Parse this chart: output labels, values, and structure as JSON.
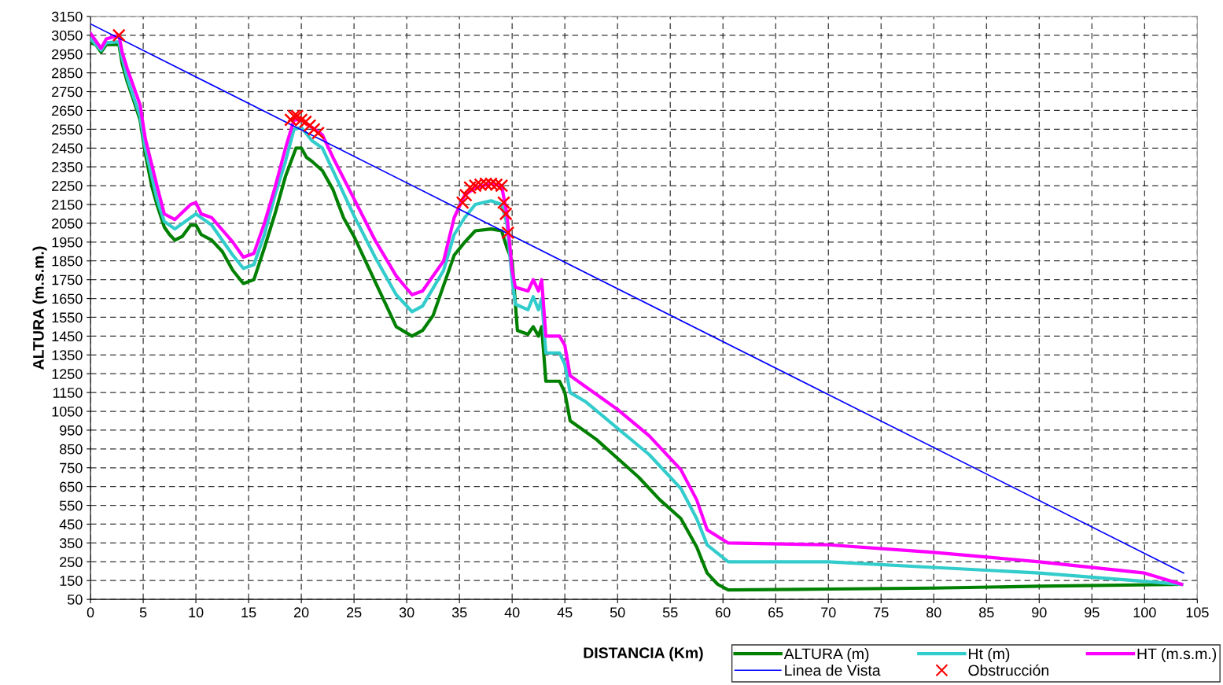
{
  "chart_data": {
    "type": "line",
    "xlabel": "DISTANCIA (Km)",
    "ylabel": "ALTURA (m.s.m.)",
    "xlim": [
      0,
      105
    ],
    "xticks": [
      0,
      5,
      10,
      15,
      20,
      25,
      30,
      35,
      40,
      45,
      50,
      55,
      60,
      65,
      70,
      75,
      80,
      85,
      90,
      95,
      100,
      105
    ],
    "ylim": [
      50,
      3150
    ],
    "yticks": [
      50,
      150,
      250,
      350,
      450,
      550,
      650,
      750,
      850,
      950,
      1050,
      1150,
      1250,
      1350,
      1450,
      1550,
      1650,
      1750,
      1850,
      1950,
      2050,
      2150,
      2250,
      2350,
      2450,
      2550,
      2650,
      2750,
      2850,
      2950,
      3050,
      3150
    ],
    "grid": true,
    "legend": "bottom",
    "marker": "none",
    "line_style": "solid",
    "series": [
      {
        "name": "ALTURA (m)",
        "color": "#008000",
        "x": [
          0,
          0.5,
          1.0,
          1.5,
          2.7,
          3.0,
          3.5,
          4.0,
          4.7,
          5.2,
          5.8,
          6.3,
          7.0,
          7.5,
          8.0,
          8.7,
          9.5,
          10.0,
          10.5,
          11.5,
          12.5,
          13.5,
          14.5,
          15.5,
          16.5,
          17.5,
          18.5,
          19.5,
          20.0,
          20.5,
          21.0,
          22.0,
          23.0,
          24.0,
          25.0,
          26.0,
          27.0,
          28.0,
          29.0,
          30.5,
          31.5,
          32.5,
          33.5,
          34.5,
          35.5,
          36.5,
          38.0,
          39.0,
          39.5,
          40.0,
          40.5,
          41.5,
          42.0,
          42.5,
          42.8,
          43.2,
          44.5,
          45.0,
          45.5,
          46.5,
          48.0,
          50.0,
          52.0,
          54.0,
          56.0,
          57.5,
          58.5,
          59.5,
          60.5,
          70,
          80,
          90,
          103.5
        ],
        "values": [
          3010,
          3000,
          2960,
          3000,
          3000,
          2900,
          2800,
          2720,
          2600,
          2420,
          2250,
          2150,
          2030,
          1990,
          1960,
          1980,
          2040,
          2040,
          1990,
          1960,
          1900,
          1800,
          1730,
          1750,
          1920,
          2100,
          2300,
          2450,
          2450,
          2400,
          2380,
          2330,
          2230,
          2080,
          1980,
          1860,
          1740,
          1620,
          1500,
          1450,
          1480,
          1560,
          1720,
          1880,
          1950,
          2010,
          2020,
          2010,
          1920,
          1850,
          1480,
          1460,
          1500,
          1450,
          1500,
          1210,
          1210,
          1150,
          1000,
          960,
          900,
          800,
          700,
          580,
          480,
          330,
          190,
          130,
          100,
          105,
          110,
          120,
          130
        ]
      },
      {
        "name": "Ht (m)",
        "color": "#33cccc",
        "x": [
          0,
          1.0,
          1.5,
          2.7,
          3.0,
          3.5,
          4.7,
          5.2,
          6.3,
          7.0,
          8.0,
          9.5,
          10.0,
          11.5,
          13.5,
          14.5,
          15.5,
          16.5,
          17.5,
          18.5,
          19.3,
          20.0,
          21.0,
          22.0,
          23.0,
          25.0,
          27.0,
          29.0,
          30.5,
          31.5,
          33.5,
          34.5,
          35.5,
          36.5,
          38.0,
          39.0,
          39.5,
          40.0,
          40.3,
          41.5,
          42.0,
          42.5,
          42.8,
          43.2,
          44.5,
          45.0,
          45.5,
          47,
          50,
          53,
          56,
          57.5,
          58.5,
          60.5,
          70,
          80,
          90,
          103.5
        ],
        "values": [
          3030,
          2970,
          3010,
          3015,
          2930,
          2820,
          2620,
          2450,
          2180,
          2060,
          2020,
          2080,
          2100,
          2040,
          1880,
          1810,
          1830,
          1990,
          2200,
          2380,
          2550,
          2560,
          2490,
          2450,
          2330,
          2090,
          1870,
          1670,
          1580,
          1610,
          1800,
          1990,
          2080,
          2150,
          2170,
          2150,
          2050,
          1750,
          1620,
          1590,
          1660,
          1590,
          1650,
          1360,
          1360,
          1300,
          1150,
          1100,
          960,
          820,
          640,
          480,
          340,
          250,
          250,
          220,
          190,
          130
        ]
      },
      {
        "name": "HT (m.s.m.)",
        "color": "#ff00ff",
        "x": [
          0,
          0.5,
          1.0,
          1.5,
          2.7,
          3.0,
          3.5,
          4.7,
          5.2,
          6.3,
          7.0,
          8.0,
          9.5,
          10.0,
          10.5,
          11.5,
          13.5,
          14.5,
          15.5,
          16.5,
          17.5,
          18.5,
          19.3,
          20.0,
          21.0,
          22.0,
          23.0,
          25.0,
          27.0,
          29.0,
          30.5,
          31.5,
          33.5,
          34.5,
          35.5,
          36.5,
          38.0,
          39.0,
          39.5,
          40.0,
          40.3,
          41.5,
          42.0,
          42.5,
          42.8,
          43.2,
          44.5,
          45.0,
          45.5,
          47,
          50,
          53,
          56,
          57.5,
          58.5,
          60.5,
          70,
          80,
          90,
          100,
          103.5
        ],
        "values": [
          3060,
          3020,
          2980,
          3030,
          3050,
          2960,
          2870,
          2680,
          2500,
          2250,
          2100,
          2070,
          2150,
          2160,
          2100,
          2080,
          1950,
          1870,
          1890,
          2050,
          2240,
          2450,
          2600,
          2600,
          2560,
          2520,
          2400,
          2180,
          1960,
          1770,
          1670,
          1690,
          1850,
          2080,
          2200,
          2240,
          2260,
          2250,
          2100,
          1800,
          1710,
          1690,
          1750,
          1690,
          1750,
          1450,
          1450,
          1400,
          1240,
          1180,
          1060,
          920,
          740,
          580,
          420,
          350,
          340,
          300,
          250,
          190,
          130
        ]
      },
      {
        "name": "Linea de Vista",
        "color": "#0000ff",
        "x": [
          0,
          103.7
        ],
        "values": [
          3110,
          190
        ]
      },
      {
        "name": "Obstrucción",
        "color": "#ff0000",
        "type": "scatter",
        "marker": "cross",
        "x": [
          2.7,
          19.0,
          19.3,
          19.6,
          20.0,
          20.4,
          20.8,
          21.2,
          21.6,
          35.3,
          35.6,
          36.0,
          36.5,
          37.0,
          37.5,
          38.0,
          38.5,
          39.0,
          39.2,
          39.4,
          39.6
        ],
        "values": [
          3050,
          2600,
          2620,
          2620,
          2600,
          2590,
          2570,
          2550,
          2530,
          2160,
          2200,
          2240,
          2250,
          2255,
          2260,
          2260,
          2255,
          2250,
          2160,
          2100,
          2000
        ]
      }
    ]
  }
}
